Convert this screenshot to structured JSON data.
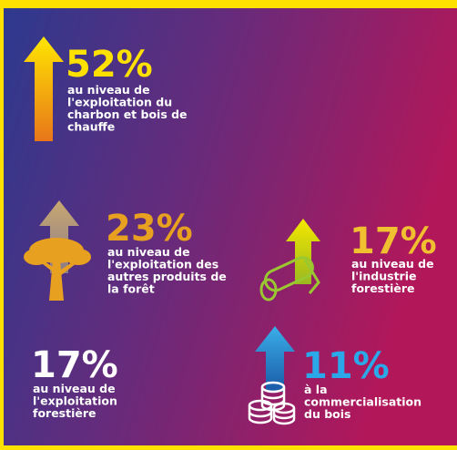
{
  "items": [
    {
      "value": "52%",
      "lines": [
        "au niveau de",
        "l'exploitation du",
        "charbon et bois de",
        "chauffe"
      ]
    },
    {
      "value": "23%",
      "lines": [
        "au niveau de",
        "l'exploitation des",
        "autres produits de",
        "la forêt"
      ]
    },
    {
      "value": "17%",
      "lines": [
        "au niveau de",
        "l'industrie",
        "forestière"
      ]
    },
    {
      "value": "17%",
      "lines": [
        "au niveau de",
        "l'exploitation",
        "forestière"
      ]
    },
    {
      "value": "11%",
      "lines": [
        "à la",
        "commercialisation",
        "du bois"
      ]
    }
  ]
}
